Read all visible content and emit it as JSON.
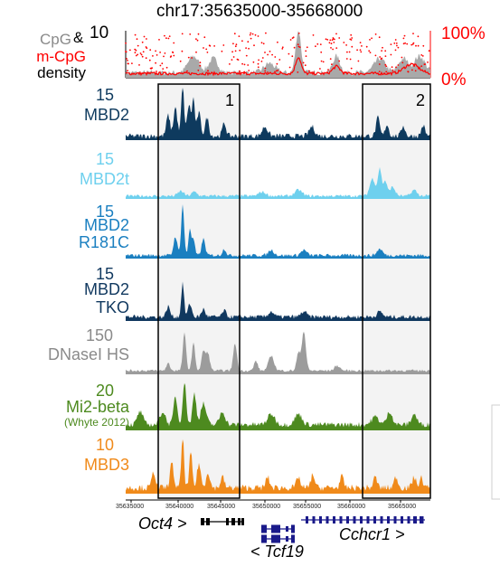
{
  "title": "chr17:35635000-35668000",
  "density_track": {
    "label_cpg": "CpG",
    "label_amp": "&",
    "label_mcpg": "m-CpG",
    "label_density": "density",
    "left_max": "10",
    "right_max": "100%",
    "right_min": "0%",
    "cpg_color": "#a9a9a9",
    "mcpg_color": "#ff0000"
  },
  "tracks": [
    {
      "name": "MBD2",
      "name2": "",
      "max": "15",
      "color": "#0e3a5e"
    },
    {
      "name": "MBD2t",
      "name2": "",
      "max": "15",
      "color": "#6ed0ee"
    },
    {
      "name": "MBD2",
      "name2": "R181C",
      "max": "15",
      "color": "#1a7fc0"
    },
    {
      "name": "MBD2",
      "name2": "TKO",
      "max": "15",
      "color": "#10385f"
    },
    {
      "name": "DNaseI HS",
      "name2": "",
      "max": "150",
      "color": "#9c9c9c"
    },
    {
      "name": "Mi2-beta",
      "name2": "(Whyte 2012)",
      "max": "20",
      "color": "#4d8a1f"
    },
    {
      "name": "MBD3",
      "name2": "",
      "max": "10",
      "color": "#f08a1a"
    }
  ],
  "regions": [
    {
      "label": "1"
    },
    {
      "label": "2"
    }
  ],
  "axis": {
    "ticks": [
      "35635000",
      "35640000",
      "35645000",
      "35650000",
      "35655000",
      "35660000",
      "35665000"
    ]
  },
  "genes": [
    {
      "name": "Oct4 >",
      "color": "#000000"
    },
    {
      "name": "< Tcf19",
      "color": "#1a1a8a"
    },
    {
      "name": "Cchcr1 >",
      "color": "#1a1a8a"
    }
  ]
}
